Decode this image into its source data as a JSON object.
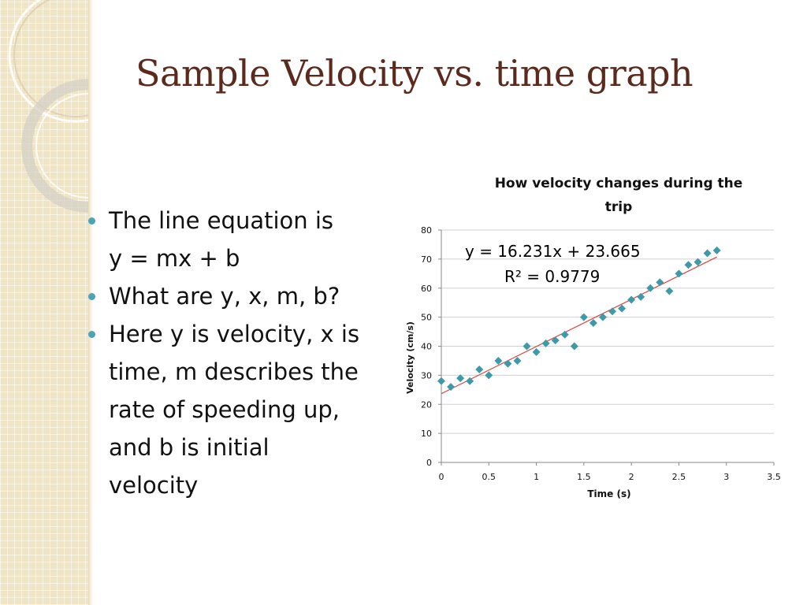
{
  "slide": {
    "title": "Sample Velocity vs. time graph",
    "bullets": [
      {
        "lines": [
          "The line equation is"
        ]
      },
      {
        "continuation": true,
        "lines": [
          "y = mx + b"
        ]
      },
      {
        "lines": [
          "What are y, x, m, b?"
        ]
      },
      {
        "lines": [
          "Here y is velocity, x is",
          "time, m describes the",
          "rate of speeding up,",
          "and b is initial",
          "velocity"
        ]
      }
    ]
  },
  "colors": {
    "title": "#5b2a1c",
    "bullet": "#4ba3b8",
    "marker": "#3e9aa8",
    "trendline": "#d9453b",
    "grid": "#d0d0d0"
  },
  "chart_data": {
    "type": "scatter",
    "title_lines": [
      "How velocity changes during the",
      "trip"
    ],
    "xlabel": "Time (s)",
    "ylabel": "Velocity (cm/s)",
    "xlim": [
      0,
      3.5
    ],
    "ylim": [
      0,
      80
    ],
    "x_ticks": [
      "0",
      "0.5",
      "1",
      "1.5",
      "2",
      "2.5",
      "3",
      "3.5"
    ],
    "y_ticks": [
      "0",
      "10",
      "20",
      "30",
      "40",
      "50",
      "60",
      "70",
      "80"
    ],
    "grid": "horizontal",
    "legend": "none",
    "marker": "diamond",
    "points": [
      {
        "x": 0.0,
        "y": 28
      },
      {
        "x": 0.1,
        "y": 26
      },
      {
        "x": 0.2,
        "y": 29
      },
      {
        "x": 0.3,
        "y": 28
      },
      {
        "x": 0.4,
        "y": 32
      },
      {
        "x": 0.5,
        "y": 30
      },
      {
        "x": 0.6,
        "y": 35
      },
      {
        "x": 0.7,
        "y": 34
      },
      {
        "x": 0.8,
        "y": 35
      },
      {
        "x": 0.9,
        "y": 40
      },
      {
        "x": 1.0,
        "y": 38
      },
      {
        "x": 1.1,
        "y": 41
      },
      {
        "x": 1.2,
        "y": 42
      },
      {
        "x": 1.3,
        "y": 44
      },
      {
        "x": 1.4,
        "y": 40
      },
      {
        "x": 1.5,
        "y": 50
      },
      {
        "x": 1.6,
        "y": 48
      },
      {
        "x": 1.7,
        "y": 50
      },
      {
        "x": 1.8,
        "y": 52
      },
      {
        "x": 1.9,
        "y": 53
      },
      {
        "x": 2.0,
        "y": 56
      },
      {
        "x": 2.1,
        "y": 57
      },
      {
        "x": 2.2,
        "y": 60
      },
      {
        "x": 2.3,
        "y": 62
      },
      {
        "x": 2.4,
        "y": 59
      },
      {
        "x": 2.5,
        "y": 65
      },
      {
        "x": 2.6,
        "y": 68
      },
      {
        "x": 2.7,
        "y": 69
      },
      {
        "x": 2.8,
        "y": 72
      },
      {
        "x": 2.9,
        "y": 73
      }
    ],
    "trendline": {
      "slope": 16.231,
      "intercept": 23.665,
      "x_range": [
        0,
        2.9
      ],
      "equation": "y = 16.231x + 23.665",
      "r_squared": "R² = 0.9779"
    }
  }
}
